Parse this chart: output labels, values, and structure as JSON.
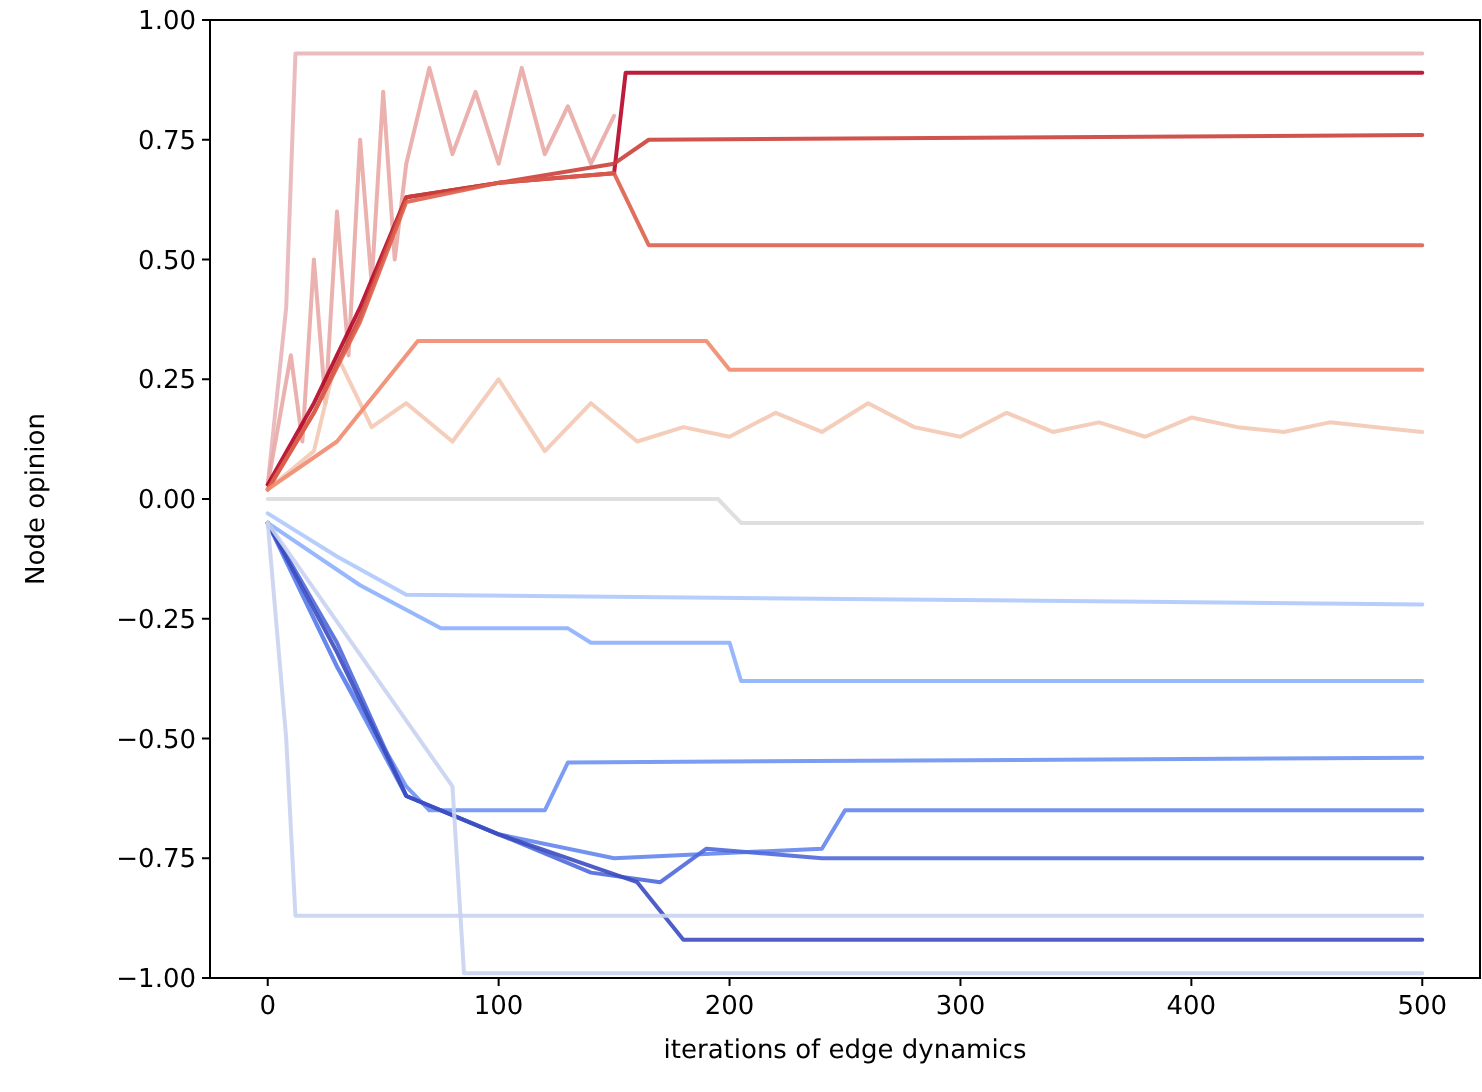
{
  "chart_data": {
    "type": "line",
    "xlabel": "iterations of edge dynamics",
    "ylabel": "Node opinion",
    "xlim": [
      -25,
      525
    ],
    "ylim": [
      -1,
      1
    ],
    "xticks": [
      0,
      100,
      200,
      300,
      400,
      500
    ],
    "yticks": [
      {
        "value": -1,
        "label": "−1.00"
      },
      {
        "value": -0.75,
        "label": "−0.75"
      },
      {
        "value": -0.5,
        "label": "−0.50"
      },
      {
        "value": -0.25,
        "label": "−0.25"
      },
      {
        "value": 0,
        "label": "0.00"
      },
      {
        "value": 0.25,
        "label": "0.25"
      },
      {
        "value": 0.5,
        "label": "0.50"
      },
      {
        "value": 0.75,
        "label": "0.75"
      },
      {
        "value": 1,
        "label": "1.00"
      }
    ],
    "grid": false,
    "marker": "none",
    "line_style": "solid",
    "series": [
      {
        "color": "#e9b5b8",
        "x": [
          0,
          8,
          12,
          500
        ],
        "values": [
          0.03,
          0.4,
          0.93,
          0.93
        ]
      },
      {
        "color": "#e8a9a6",
        "x": [
          0,
          10,
          15,
          20,
          25,
          30,
          35,
          40,
          45,
          50,
          55,
          60,
          70,
          80,
          90,
          100,
          110,
          120,
          130,
          140,
          150
        ],
        "values": [
          0.03,
          0.3,
          0.12,
          0.5,
          0.2,
          0.6,
          0.3,
          0.75,
          0.45,
          0.85,
          0.5,
          0.7,
          0.9,
          0.72,
          0.85,
          0.7,
          0.9,
          0.72,
          0.82,
          0.7,
          0.8
        ]
      },
      {
        "color": "#f3c8b4",
        "x": [
          0,
          20,
          30,
          45,
          60,
          80,
          100,
          120,
          140,
          160,
          180,
          200,
          220,
          240,
          260,
          280,
          300,
          320,
          340,
          360,
          380,
          400,
          420,
          440,
          460,
          480,
          500
        ],
        "values": [
          0.02,
          0.1,
          0.3,
          0.15,
          0.2,
          0.12,
          0.25,
          0.1,
          0.2,
          0.12,
          0.15,
          0.13,
          0.18,
          0.14,
          0.2,
          0.15,
          0.13,
          0.18,
          0.14,
          0.16,
          0.13,
          0.17,
          0.15,
          0.14,
          0.16,
          0.15,
          0.14
        ]
      },
      {
        "color": "#b40426",
        "x": [
          0,
          20,
          40,
          60,
          100,
          150,
          155,
          500
        ],
        "values": [
          0.03,
          0.2,
          0.4,
          0.63,
          0.66,
          0.68,
          0.89,
          0.89
        ]
      },
      {
        "color": "#cc403a",
        "x": [
          0,
          20,
          40,
          60,
          100,
          150,
          165,
          500
        ],
        "values": [
          0.02,
          0.18,
          0.38,
          0.63,
          0.66,
          0.7,
          0.75,
          0.76
        ]
      },
      {
        "color": "#dd5f4b",
        "x": [
          0,
          20,
          40,
          60,
          100,
          150,
          165,
          500
        ],
        "values": [
          0.02,
          0.18,
          0.37,
          0.62,
          0.66,
          0.68,
          0.53,
          0.53
        ]
      },
      {
        "color": "#f08b6e",
        "x": [
          0,
          30,
          65,
          190,
          200,
          500
        ],
        "values": [
          0.02,
          0.12,
          0.33,
          0.33,
          0.27,
          0.27
        ]
      },
      {
        "color": "#dddcdc",
        "x": [
          0,
          60,
          195,
          205,
          500
        ],
        "values": [
          0.0,
          0.0,
          0.0,
          -0.05,
          -0.05
        ]
      },
      {
        "color": "#aec9fc",
        "x": [
          0,
          30,
          60,
          500
        ],
        "values": [
          -0.03,
          -0.12,
          -0.2,
          -0.22
        ]
      },
      {
        "color": "#8db0fe",
        "x": [
          0,
          40,
          75,
          130,
          140,
          200,
          205,
          500
        ],
        "values": [
          -0.05,
          -0.18,
          -0.27,
          -0.27,
          -0.3,
          -0.3,
          -0.38,
          -0.38
        ]
      },
      {
        "color": "#6f92f3",
        "x": [
          0,
          30,
          60,
          70,
          120,
          130,
          500
        ],
        "values": [
          -0.05,
          -0.35,
          -0.6,
          -0.65,
          -0.65,
          -0.55,
          -0.54
        ]
      },
      {
        "color": "#6485ec",
        "x": [
          0,
          30,
          60,
          100,
          150,
          240,
          250,
          500
        ],
        "values": [
          -0.05,
          -0.35,
          -0.62,
          -0.7,
          -0.75,
          -0.73,
          -0.65,
          -0.65
        ]
      },
      {
        "color": "#4f69d9",
        "x": [
          0,
          30,
          60,
          100,
          140,
          170,
          190,
          240,
          500
        ],
        "values": [
          -0.05,
          -0.3,
          -0.62,
          -0.7,
          -0.78,
          -0.8,
          -0.73,
          -0.75,
          -0.75
        ]
      },
      {
        "color": "#3b4cc0",
        "x": [
          0,
          30,
          60,
          100,
          160,
          180,
          500
        ],
        "values": [
          -0.05,
          -0.32,
          -0.62,
          -0.7,
          -0.8,
          -0.92,
          -0.92
        ]
      },
      {
        "color": "#c9d3f0",
        "x": [
          0,
          8,
          12,
          500
        ],
        "values": [
          -0.05,
          -0.5,
          -0.87,
          -0.87
        ]
      },
      {
        "color": "#c9d3f0",
        "x": [
          0,
          80,
          85,
          500
        ],
        "values": [
          -0.05,
          -0.6,
          -0.99,
          -0.99
        ]
      }
    ]
  }
}
